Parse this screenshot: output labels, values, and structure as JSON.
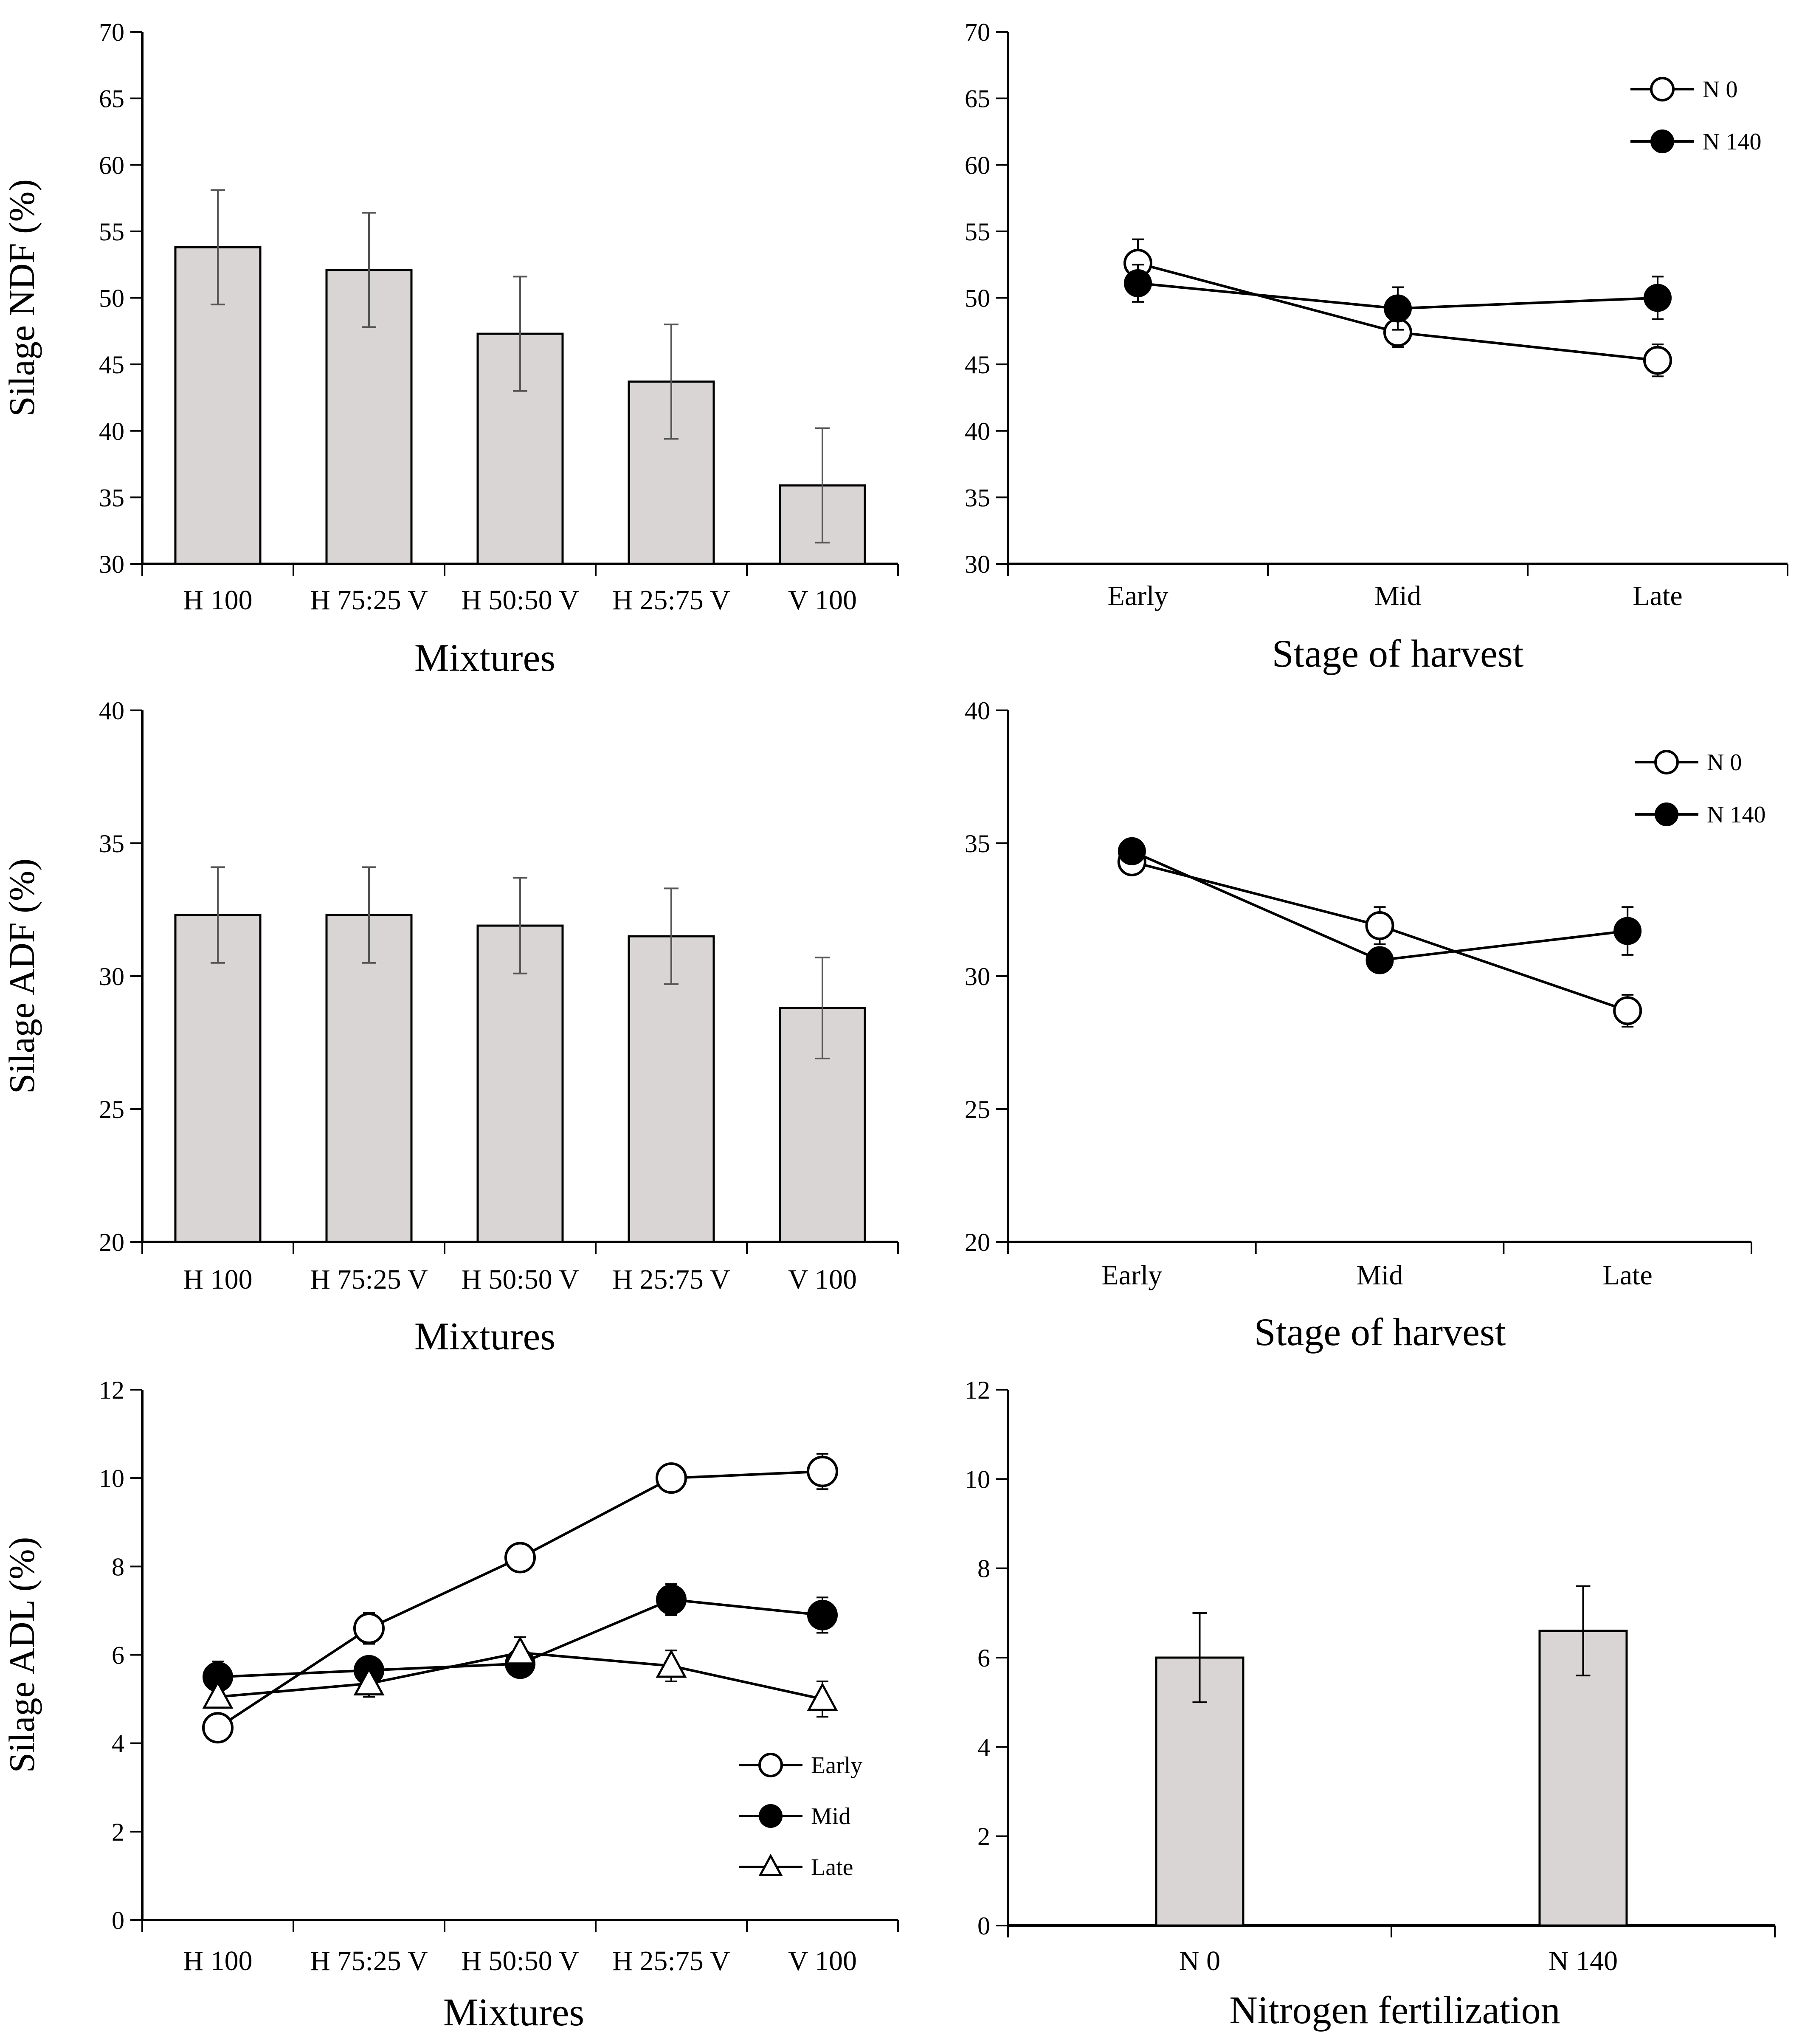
{
  "chart_data": [
    {
      "id": "ndf-mixtures",
      "type": "bar",
      "ylabel": "Silage NDF (%)",
      "xlabel": "Mixtures",
      "ylim": [
        30,
        70
      ],
      "yticks": [
        30,
        35,
        40,
        45,
        50,
        55,
        60,
        65,
        70
      ],
      "categories": [
        "H 100",
        "H 75:25 V",
        "H 50:50 V",
        "H 25:75 V",
        "V 100"
      ],
      "values": [
        53.8,
        52.1,
        47.3,
        43.7,
        35.9
      ],
      "errors": [
        4.3,
        4.3,
        4.3,
        4.3,
        4.3
      ],
      "bar_color": "#d9d5d5"
    },
    {
      "id": "ndf-stage",
      "type": "line",
      "xlabel": "Stage of harvest",
      "ylim": [
        30,
        70
      ],
      "yticks": [
        30,
        35,
        40,
        45,
        50,
        55,
        60,
        65,
        70
      ],
      "categories": [
        "Early",
        "Mid",
        "Late"
      ],
      "series": [
        {
          "name": "N 0",
          "marker": "open-circle",
          "values": [
            52.6,
            47.4,
            45.3
          ],
          "errors": [
            1.8,
            1.1,
            1.2
          ]
        },
        {
          "name": "N 140",
          "marker": "filled-circle",
          "values": [
            51.1,
            49.2,
            50.0
          ],
          "errors": [
            1.4,
            1.6,
            1.6
          ]
        }
      ],
      "legend_position": "top-right"
    },
    {
      "id": "adf-mixtures",
      "type": "bar",
      "ylabel": "Silage ADF (%)",
      "xlabel": "Mixtures",
      "ylim": [
        20,
        40
      ],
      "yticks": [
        20,
        25,
        30,
        35,
        40
      ],
      "categories": [
        "H 100",
        "H 75:25 V",
        "H 50:50 V",
        "H 25:75 V",
        "V 100"
      ],
      "values": [
        32.3,
        32.3,
        31.9,
        31.5,
        28.8
      ],
      "errors": [
        1.8,
        1.8,
        1.8,
        1.8,
        1.9
      ],
      "bar_color": "#d9d5d5"
    },
    {
      "id": "adf-stage",
      "type": "line",
      "xlabel": "Stage of  harvest",
      "ylim": [
        20,
        40
      ],
      "yticks": [
        20,
        25,
        30,
        35,
        40
      ],
      "categories": [
        "Early",
        "Mid",
        "Late"
      ],
      "series": [
        {
          "name": "N 0",
          "marker": "open-circle",
          "values": [
            34.3,
            31.9,
            28.7
          ],
          "errors": [
            0.4,
            0.7,
            0.6
          ]
        },
        {
          "name": "N 140",
          "marker": "filled-circle",
          "values": [
            34.7,
            30.6,
            31.7
          ],
          "errors": [
            0.3,
            0.4,
            0.9
          ]
        }
      ],
      "legend_position": "top-right"
    },
    {
      "id": "adl-mixtures",
      "type": "line",
      "ylabel": "Silage ADL (%)",
      "xlabel": "Mixtures",
      "ylim": [
        0,
        12
      ],
      "yticks": [
        0,
        2,
        4,
        6,
        8,
        10,
        12
      ],
      "categories": [
        "H 100",
        "H 75:25 V",
        "H 50:50 V",
        "H 25:75 V",
        "V 100"
      ],
      "series": [
        {
          "name": "Early",
          "marker": "open-circle",
          "values": [
            4.35,
            6.6,
            8.2,
            10.0,
            10.15
          ],
          "errors": [
            0.15,
            0.35,
            0.2,
            0.2,
            0.4
          ]
        },
        {
          "name": "Mid",
          "marker": "filled-circle",
          "values": [
            5.5,
            5.65,
            5.8,
            7.25,
            6.9
          ],
          "errors": [
            0.35,
            0.3,
            0.3,
            0.35,
            0.4
          ]
        },
        {
          "name": "Late",
          "marker": "open-triangle",
          "values": [
            5.05,
            5.35,
            6.05,
            5.75,
            5.0
          ],
          "errors": [
            0.25,
            0.3,
            0.35,
            0.35,
            0.4
          ]
        }
      ],
      "legend_position": "bottom-right"
    },
    {
      "id": "adl-nitrogen",
      "type": "bar",
      "xlabel": "Nitrogen  fertilization",
      "ylim": [
        0,
        12
      ],
      "yticks": [
        0,
        2,
        4,
        6,
        8,
        10,
        12
      ],
      "categories": [
        "N 0",
        "N 140"
      ],
      "values": [
        6.0,
        6.6
      ],
      "errors": [
        1.0,
        1.0
      ],
      "bar_color": "#d9d5d5"
    }
  ]
}
